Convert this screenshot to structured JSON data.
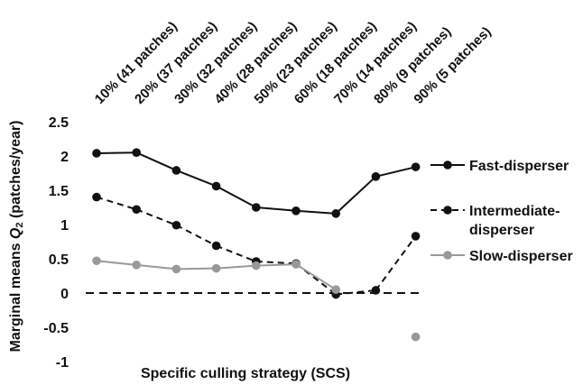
{
  "chart_data": {
    "type": "line",
    "title": "",
    "xlabel": "Specific culling strategy (SCS)",
    "ylabel_prefix": "Marginal means ",
    "ylabel_var": "Q",
    "ylabel_sub": "2",
    "ylabel_suffix": " (patches/year)",
    "ylim": [
      -1,
      2.5
    ],
    "yticks": [
      "2.5",
      "2",
      "1.5",
      "1",
      "0.5",
      "0",
      "-0.5",
      "-1"
    ],
    "categories": [
      "10% (41 patches)",
      "20% (37 patches)",
      "30% (32 patches)",
      "40% (28 patches)",
      "50% (23 patches)",
      "60% (18 patches)",
      "70% (14 patches)",
      "80% (9 patches)",
      "90% (5 patches)"
    ],
    "reference_line": 0,
    "legend_position": "right",
    "series": [
      {
        "name": "Fast-disperser",
        "name_lines": [
          "Fast-disperser"
        ],
        "color": "#111111",
        "dash": "solid",
        "values": [
          2.04,
          2.05,
          1.79,
          1.56,
          1.25,
          1.2,
          1.16,
          1.7,
          1.84
        ],
        "connected": [
          true,
          true,
          true,
          true,
          true,
          true,
          true,
          true,
          true
        ]
      },
      {
        "name": "Intermediate-disperser",
        "name_lines": [
          "Intermediate-",
          "disperser"
        ],
        "color": "#111111",
        "dash": "dashed",
        "values": [
          1.4,
          1.22,
          0.99,
          0.69,
          0.46,
          0.43,
          -0.02,
          0.04,
          0.83
        ],
        "connected": [
          true,
          true,
          true,
          true,
          true,
          true,
          true,
          true,
          true
        ]
      },
      {
        "name": "Slow-disperser",
        "name_lines": [
          "Slow-disperser"
        ],
        "color": "#999999",
        "dash": "solid",
        "values": [
          0.47,
          0.41,
          0.35,
          0.36,
          0.4,
          0.42,
          0.05,
          null,
          -0.64
        ],
        "connected": [
          true,
          true,
          true,
          true,
          true,
          true,
          true,
          false,
          false
        ]
      }
    ]
  }
}
